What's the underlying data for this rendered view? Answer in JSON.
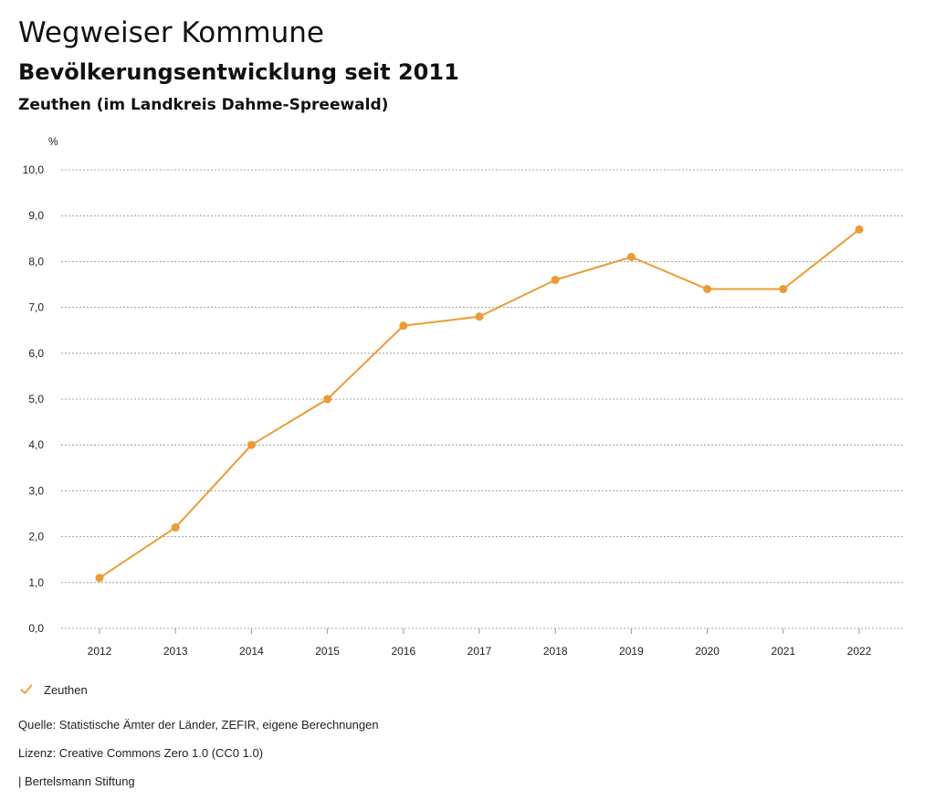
{
  "header": {
    "title": "Wegweiser Kommune",
    "subtitle": "Bevölkerungsentwicklung seit 2011",
    "region": "Zeuthen (im Landkreis Dahme-Spreewald)"
  },
  "colors": {
    "series": "#EB9B35",
    "grid": "#8a8a8a",
    "text": "#222222"
  },
  "chart_data": {
    "type": "line",
    "title": "Bevölkerungsentwicklung seit 2011",
    "subtitle": "Zeuthen (im Landkreis Dahme-Spreewald)",
    "xlabel": "",
    "ylabel": "%",
    "categories": [
      "2012",
      "2013",
      "2014",
      "2015",
      "2016",
      "2017",
      "2018",
      "2019",
      "2020",
      "2021",
      "2022"
    ],
    "series": [
      {
        "name": "Zeuthen",
        "values": [
          1.1,
          2.2,
          4.0,
          5.0,
          6.6,
          6.8,
          7.6,
          8.1,
          7.4,
          7.4,
          8.7
        ]
      }
    ],
    "ylim": [
      0,
      10
    ],
    "yticks": [
      0,
      1,
      2,
      3,
      4,
      5,
      6,
      7,
      8,
      9,
      10
    ],
    "ytick_labels": [
      "0,0",
      "1,0",
      "2,0",
      "3,0",
      "4,0",
      "5,0",
      "6,0",
      "7,0",
      "8,0",
      "9,0",
      "10,0"
    ],
    "grid": true,
    "legend_position": "bottom-left"
  },
  "legend": {
    "label": "Zeuthen",
    "icon": "checkmark-icon"
  },
  "footer": {
    "source": "Quelle: Statistische Ämter der Länder, ZEFIR, eigene Berechnungen",
    "license": "Lizenz: Creative Commons Zero 1.0 (CC0 1.0)",
    "publisher": "| Bertelsmann Stiftung"
  }
}
